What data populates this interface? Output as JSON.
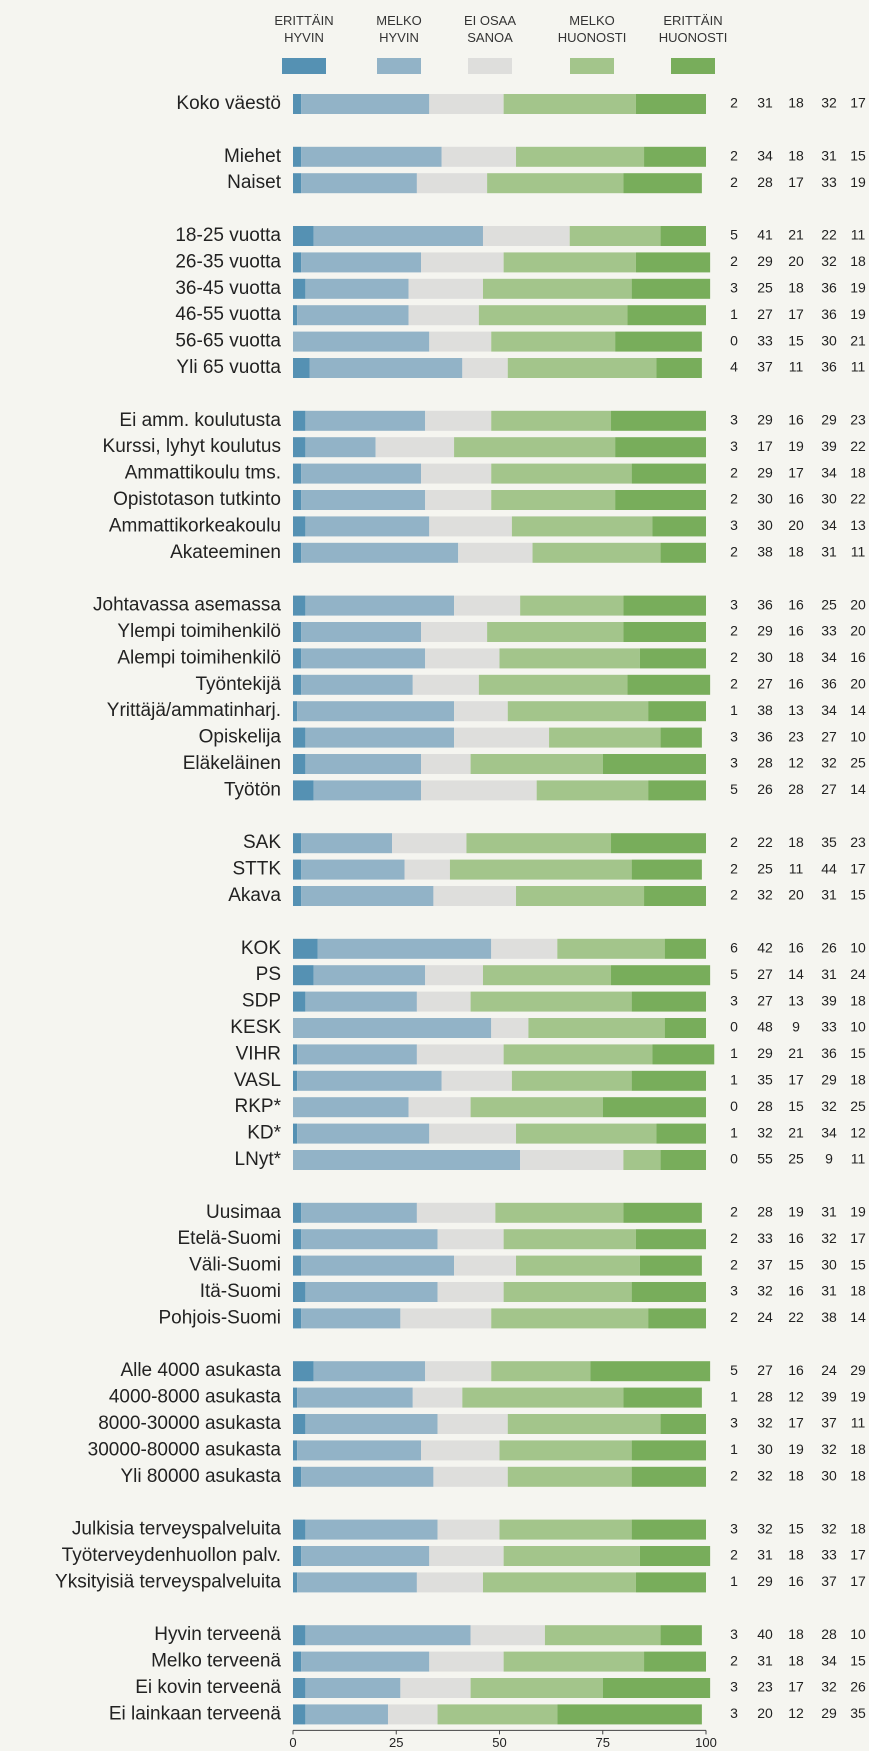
{
  "chart_data": {
    "type": "stacked_bar_horizontal",
    "categories": [
      "Koko väestö",
      "Miehet",
      "Naiset",
      "18-25 vuotta",
      "26-35 vuotta",
      "36-45 vuotta",
      "46-55 vuotta",
      "56-65 vuotta",
      "Yli 65 vuotta",
      "Ei amm. koulutusta",
      "Kurssi, lyhyt koulutus",
      "Ammattikoulu tms.",
      "Opistotason tutkinto",
      "Ammattikorkeakoulu",
      "Akateeminen",
      "Johtavassa asemassa",
      "Ylempi toimihenkilö",
      "Alempi toimihenkilö",
      "Työntekijä",
      "Yrittäjä/ammatinharj.",
      "Opiskelija",
      "Eläkeläinen",
      "Työtön",
      "SAK",
      "STTK",
      "Akava",
      "KOK",
      "PS",
      "SDP",
      "KESK",
      "VIHR",
      "VASL",
      "RKP*",
      "KD*",
      "LNyt*",
      "Uusimaa",
      "Etelä-Suomi",
      "Väli-Suomi",
      "Itä-Suomi",
      "Pohjois-Suomi",
      "Alle 4000 asukasta",
      "4000-8000 asukasta",
      "8000-30000 asukasta",
      "30000-80000 asukasta",
      "Yli 80000 asukasta",
      "Julkisia terveyspalveluita",
      "Työterveydenhuollon palv.",
      "Yksityisiä terveyspalveluita",
      "Hyvin terveenä",
      "Melko terveenä",
      "Ei kovin terveenä",
      "Ei lainkaan terveenä"
    ],
    "series": [
      {
        "name": "ERITTÄIN\nHYVIN",
        "color": "#5591b3",
        "values": [
          2,
          2,
          2,
          5,
          2,
          3,
          1,
          0,
          4,
          3,
          3,
          2,
          2,
          3,
          2,
          3,
          2,
          2,
          2,
          1,
          3,
          3,
          5,
          2,
          2,
          2,
          6,
          5,
          3,
          0,
          1,
          1,
          0,
          1,
          0,
          2,
          2,
          2,
          3,
          2,
          5,
          1,
          3,
          1,
          2,
          3,
          2,
          1,
          3,
          2,
          3,
          3
        ]
      },
      {
        "name": "MELKO\nHYVIN",
        "color": "#92b3c7",
        "values": [
          31,
          34,
          28,
          41,
          29,
          25,
          27,
          33,
          37,
          29,
          17,
          29,
          30,
          30,
          38,
          36,
          29,
          30,
          27,
          38,
          36,
          28,
          26,
          22,
          25,
          32,
          42,
          27,
          27,
          48,
          29,
          35,
          28,
          32,
          55,
          28,
          33,
          37,
          32,
          24,
          27,
          28,
          32,
          30,
          32,
          32,
          31,
          29,
          40,
          31,
          23,
          20
        ]
      },
      {
        "name": "EI OSAA\nSANOA",
        "color": "#dededc",
        "values": [
          18,
          18,
          17,
          21,
          20,
          18,
          17,
          15,
          11,
          16,
          19,
          17,
          16,
          20,
          18,
          16,
          16,
          18,
          16,
          13,
          23,
          12,
          28,
          18,
          11,
          20,
          16,
          14,
          13,
          9,
          21,
          17,
          15,
          21,
          25,
          19,
          16,
          15,
          16,
          22,
          16,
          12,
          17,
          19,
          18,
          15,
          18,
          16,
          18,
          18,
          17,
          12
        ]
      },
      {
        "name": "MELKO\nHUONOSTI",
        "color": "#a3c58b",
        "values": [
          32,
          31,
          33,
          22,
          32,
          36,
          36,
          30,
          36,
          29,
          39,
          34,
          30,
          34,
          31,
          25,
          33,
          34,
          36,
          34,
          27,
          32,
          27,
          35,
          44,
          31,
          26,
          31,
          39,
          33,
          36,
          29,
          32,
          34,
          9,
          31,
          32,
          30,
          31,
          38,
          24,
          39,
          37,
          32,
          30,
          32,
          33,
          37,
          28,
          34,
          32,
          29
        ]
      },
      {
        "name": "ERITTÄIN\nHUONOSTI",
        "color": "#78ad5b",
        "values": [
          17,
          15,
          19,
          11,
          18,
          19,
          19,
          21,
          11,
          23,
          22,
          18,
          22,
          13,
          11,
          20,
          20,
          16,
          20,
          14,
          10,
          25,
          14,
          23,
          17,
          15,
          10,
          24,
          18,
          10,
          15,
          18,
          25,
          12,
          11,
          19,
          17,
          15,
          18,
          14,
          29,
          19,
          11,
          18,
          18,
          18,
          17,
          17,
          10,
          15,
          26,
          35
        ]
      }
    ],
    "xlim": [
      0,
      100
    ],
    "xticks": [
      0,
      25,
      50,
      75,
      100
    ]
  }
}
